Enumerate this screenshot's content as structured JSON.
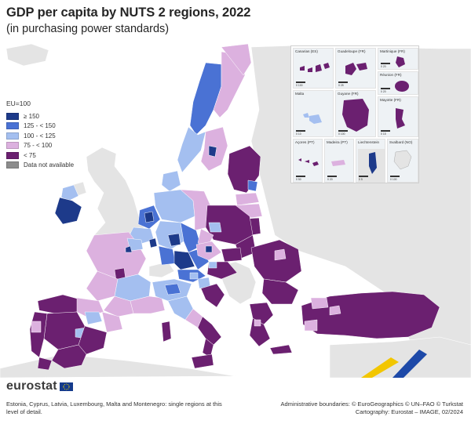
{
  "header": {
    "title": "GDP per capita by NUTS 2 regions, 2022",
    "subtitle": "(in purchasing power standards)"
  },
  "legend": {
    "title": "EU=100",
    "items": [
      {
        "label": "≥ 150",
        "color": "#1d3a8a"
      },
      {
        "label": "125 - < 150",
        "color": "#4a72d4"
      },
      {
        "label": "100 - < 125",
        "color": "#a4bff0"
      },
      {
        "label": "75 - < 100",
        "color": "#dcb1df"
      },
      {
        "label": "< 75",
        "color": "#6b2070"
      },
      {
        "label": "Data not available",
        "color": "#8c8c8c"
      }
    ]
  },
  "insets": {
    "canarias": {
      "name": "Canarias (ES)",
      "scale": "0   100"
    },
    "guadeloupe": {
      "name": "Guadeloupe (FR)",
      "scale": "0   25"
    },
    "martinique": {
      "name": "Martinique (FR)",
      "scale": "0   20"
    },
    "reunion": {
      "name": "Réunion (FR)",
      "scale": "0   20"
    },
    "guyane": {
      "name": "Guyane (FR)",
      "scale": "0   100"
    },
    "malta": {
      "name": "Malta",
      "scale": "0   10"
    },
    "mayotte": {
      "name": "Mayotte (FR)",
      "scale": "0   15"
    },
    "acores": {
      "name": "Açores (PT)",
      "scale": "0   50"
    },
    "madeira": {
      "name": "Madeira (PT)",
      "scale": "0   20"
    },
    "liechtenstein": {
      "name": "Liechtenstein",
      "scale": "0   5"
    },
    "svalbard": {
      "name": "Svalbard (NO)",
      "scale": "0   100"
    }
  },
  "footer": {
    "logo": "eurostat",
    "footnote": "Estonia, Cyprus, Latvia, Luxembourg, Malta and Montenegro: single regions at this level of detail.",
    "source_line1": "Administrative boundaries: © EuroGeographics © UN–FAO © Turkstat",
    "source_line2": "Cartography: Eurostat – IMAGE, 02/2024"
  },
  "colors": {
    "sea": "#ffffff",
    "land_non_eu": "#e4e4e4",
    "c150": "#1d3a8a",
    "c125": "#4a72d4",
    "c100": "#a4bff0",
    "c75": "#dcb1df",
    "clow": "#6b2070",
    "na": "#8c8c8c"
  }
}
